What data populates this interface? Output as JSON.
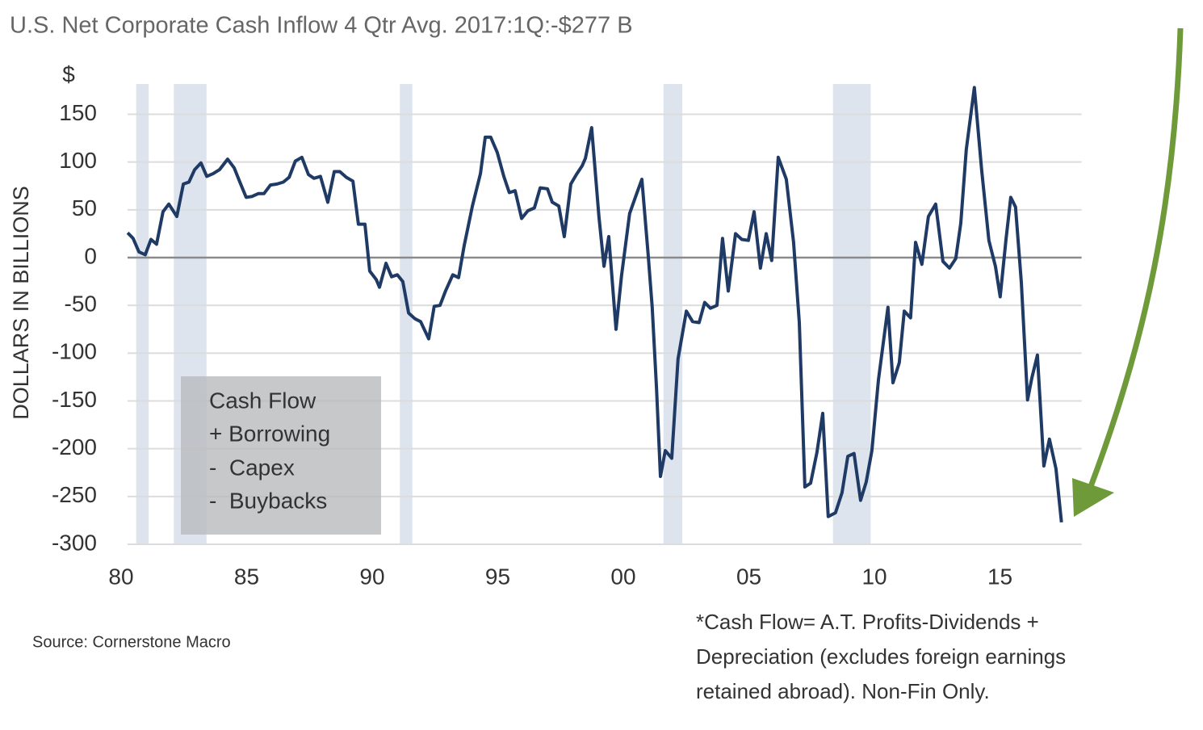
{
  "chart_data": {
    "type": "line",
    "title": "U.S. Net Corporate Cash Inflow 4 Qtr Avg. 2017:1Q:-$277 B",
    "y_unit": "$",
    "y_label": "DOLLARS IN BILLIONS",
    "annotation_box": [
      "Cash Flow",
      "+ Borrowing",
      "-  Capex",
      "-  Buybacks"
    ],
    "source": "Source: Cornerstone Macro",
    "footnote": [
      "*Cash Flow= A.T. Profits-Dividends +",
      "Depreciation (excludes foreign earnings",
      "retained abroad). Non-Fin Only."
    ],
    "xlim": [
      1980,
      2018.25
    ],
    "ylim": [
      -300,
      180
    ],
    "xticks": [
      {
        "value": 1980,
        "label": "80"
      },
      {
        "value": 1985,
        "label": "85"
      },
      {
        "value": 1990,
        "label": "90"
      },
      {
        "value": 1995,
        "label": "95"
      },
      {
        "value": 2000,
        "label": "00"
      },
      {
        "value": 2005,
        "label": "05"
      },
      {
        "value": 2010,
        "label": "10"
      },
      {
        "value": 2015,
        "label": "15"
      }
    ],
    "yticks": [
      -300,
      -250,
      -200,
      -150,
      -100,
      -50,
      0,
      50,
      100,
      150
    ],
    "grid": true,
    "shade_color": "#dde4ee",
    "shaded_periods": [
      [
        1980.6,
        1981.1
      ],
      [
        1982.1,
        1983.4
      ],
      [
        1991.1,
        1991.6
      ],
      [
        2001.6,
        2002.35
      ],
      [
        2008.35,
        2009.85
      ]
    ],
    "series": [
      {
        "color": "#1f3a64",
        "x": [
          1980.26,
          1980.48,
          1980.71,
          1980.96,
          1981.19,
          1981.41,
          1981.67,
          1981.9,
          1982.22,
          1982.48,
          1982.7,
          1982.93,
          1983.18,
          1983.41,
          1983.67,
          1983.92,
          1984.24,
          1984.5,
          1984.73,
          1984.98,
          1985.21,
          1985.47,
          1985.69,
          1985.95,
          1986.21,
          1986.46,
          1986.69,
          1986.94,
          1987.2,
          1987.46,
          1987.68,
          1987.94,
          1988.23,
          1988.49,
          1988.71,
          1988.97,
          1989.23,
          1989.45,
          1989.71,
          1989.9,
          1990.16,
          1990.29,
          1990.55,
          1990.77,
          1991.0,
          1991.22,
          1991.45,
          1991.7,
          1991.93,
          1992.25,
          1992.47,
          1992.7,
          1992.92,
          1993.21,
          1993.44,
          1993.66,
          1993.99,
          1994.31,
          1994.5,
          1994.72,
          1994.98,
          1995.24,
          1995.46,
          1995.69,
          1995.95,
          1996.2,
          1996.46,
          1996.69,
          1996.98,
          1997.17,
          1997.43,
          1997.65,
          1997.91,
          1998.13,
          1998.36,
          1998.49,
          1998.74,
          1999.03,
          1999.23,
          1999.42,
          1999.71,
          1999.93,
          2000.25,
          2000.48,
          2000.74,
          2000.99,
          2001.15,
          2001.32,
          2001.48,
          2001.67,
          2001.93,
          2002.18,
          2002.51,
          2002.76,
          2003.02,
          2003.24,
          2003.47,
          2003.73,
          2003.95,
          2004.18,
          2004.47,
          2004.72,
          2004.98,
          2005.21,
          2005.46,
          2005.69,
          2005.91,
          2006.17,
          2006.49,
          2006.78,
          2007.01,
          2007.23,
          2007.46,
          2007.71,
          2007.94,
          2008.16,
          2008.45,
          2008.71,
          2008.94,
          2009.19,
          2009.45,
          2009.67,
          2009.9,
          2010.16,
          2010.54,
          2010.74,
          2010.99,
          2011.19,
          2011.44,
          2011.64,
          2011.89,
          2012.15,
          2012.44,
          2012.73,
          2012.99,
          2013.24,
          2013.44,
          2013.66,
          2013.98,
          2014.27,
          2014.56,
          2014.82,
          2015.01,
          2015.24,
          2015.43,
          2015.62,
          2015.85,
          2016.1,
          2016.27,
          2016.49,
          2016.75,
          2016.97,
          2017.23,
          2017.45
        ],
        "values": [
          26,
          20,
          6,
          3,
          19,
          14,
          48,
          56,
          43,
          77,
          79,
          92,
          99,
          85,
          88,
          92,
          103,
          94,
          79,
          63,
          64,
          67,
          67,
          76,
          77,
          79,
          84,
          101,
          105,
          87,
          83,
          85,
          58,
          90,
          90,
          84,
          80,
          35,
          35,
          -14,
          -23,
          -31,
          -6,
          -20,
          -18,
          -25,
          -58,
          -64,
          -67,
          -85,
          -51,
          -50,
          -35,
          -18,
          -21,
          12,
          54,
          88,
          126,
          126,
          110,
          85,
          68,
          70,
          41,
          49,
          52,
          73,
          72,
          58,
          54,
          22,
          77,
          87,
          96,
          104,
          136,
          43,
          -9,
          22,
          -75,
          -19,
          46,
          63,
          82,
          3,
          -52,
          -136,
          -229,
          -202,
          -210,
          -106,
          -56,
          -67,
          -68,
          -47,
          -53,
          -50,
          20,
          -35,
          25,
          19,
          18,
          48,
          -11,
          25,
          -3,
          105,
          82,
          16,
          -68,
          -240,
          -236,
          -204,
          -163,
          -271,
          -267,
          -246,
          -208,
          -205,
          -254,
          -235,
          -202,
          -128,
          -52,
          -131,
          -110,
          -56,
          -63,
          16,
          -7,
          43,
          56,
          -4,
          -11,
          -1,
          36,
          113,
          178,
          92,
          18,
          -9,
          -41,
          19,
          63,
          53,
          -26,
          -149,
          -126,
          -102,
          -218,
          -190,
          -221,
          -277
        ]
      }
    ]
  }
}
